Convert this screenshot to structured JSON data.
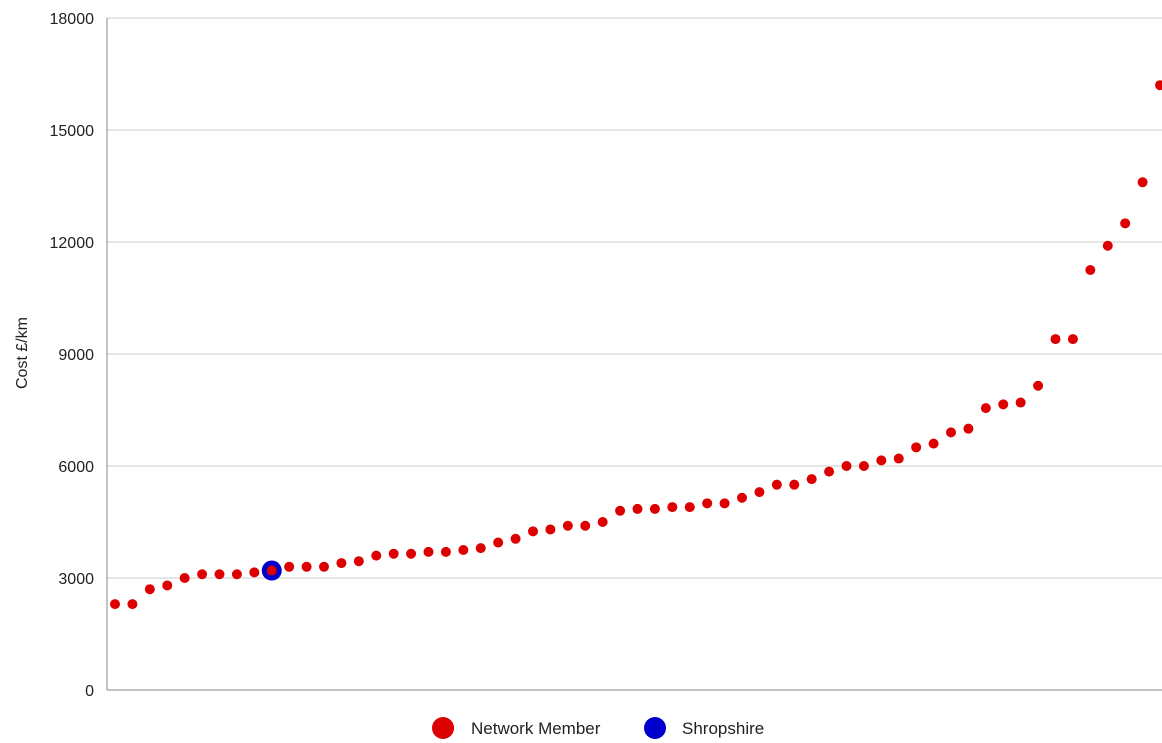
{
  "chart_data": {
    "type": "scatter",
    "ylabel": "Cost £/km",
    "ylim": [
      0,
      18000
    ],
    "y_ticks": [
      "0",
      "3000",
      "6000",
      "9000",
      "12000",
      "15000",
      "18000"
    ],
    "grid": true,
    "legend_placement": "bottom",
    "series": [
      {
        "name": "Network Member",
        "color": "#dd0000",
        "values": [
          2300,
          2300,
          2700,
          2800,
          3000,
          3100,
          3100,
          3100,
          3150,
          3200,
          3300,
          3300,
          3300,
          3400,
          3450,
          3600,
          3650,
          3650,
          3700,
          3700,
          3750,
          3800,
          3950,
          4050,
          4250,
          4300,
          4400,
          4400,
          4500,
          4800,
          4850,
          4850,
          4900,
          4900,
          5000,
          5000,
          5150,
          5300,
          5500,
          5500,
          5650,
          5850,
          6000,
          6000,
          6150,
          6200,
          6500,
          6600,
          6900,
          7000,
          7550,
          7650,
          7700,
          8150,
          9400,
          9400,
          11250,
          11900,
          12500,
          13600,
          16200
        ]
      },
      {
        "name": "Shropshire",
        "color": "#0000cc",
        "index": 9,
        "value": 3200
      }
    ]
  }
}
